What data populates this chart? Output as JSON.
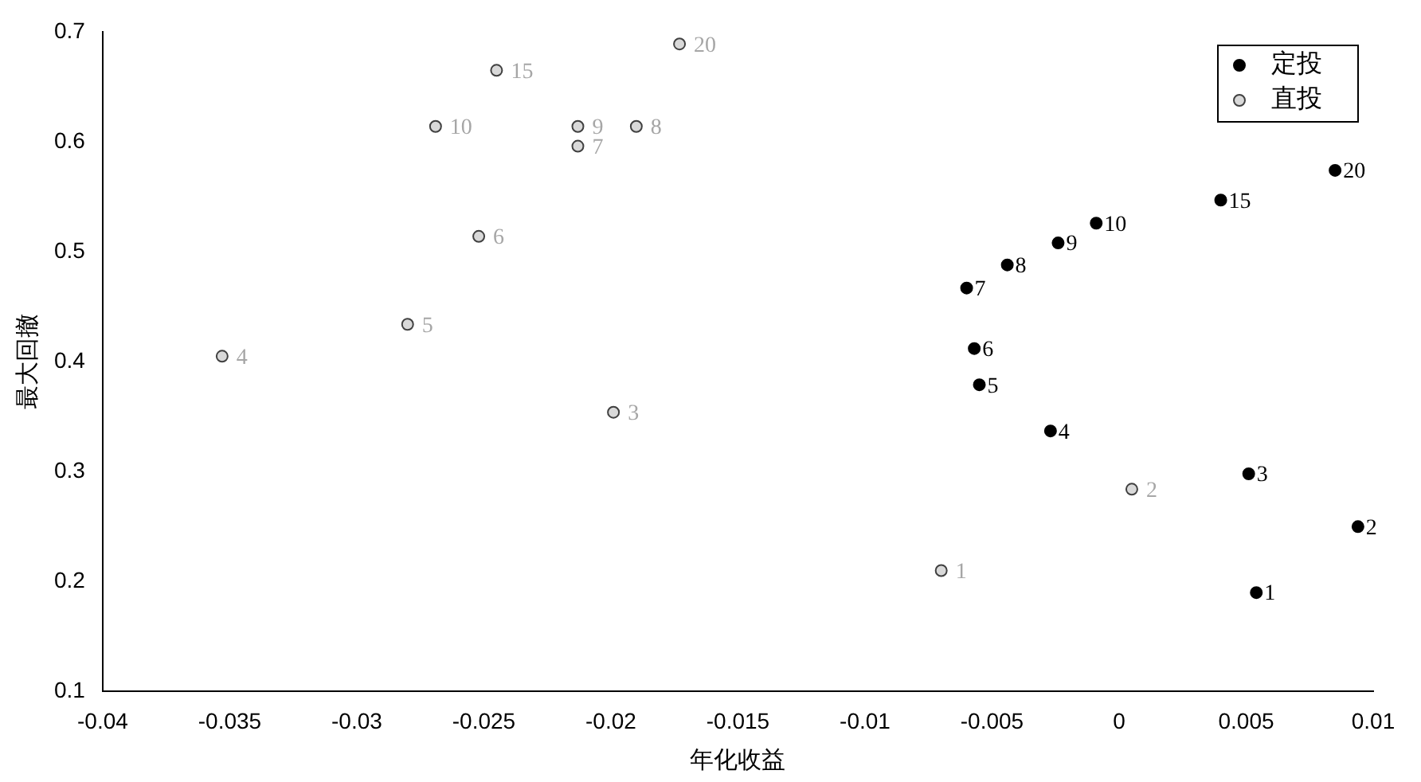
{
  "chart_data": {
    "type": "scatter",
    "xlabel": "年化收益",
    "ylabel": "最大回撤",
    "xlim": [
      -0.04,
      0.01
    ],
    "xticks": [
      -0.04,
      -0.035,
      -0.03,
      -0.025,
      -0.02,
      -0.015,
      -0.01,
      -0.005,
      0,
      0.005,
      0.01
    ],
    "ylim": [
      0.1,
      0.7
    ],
    "yticks": [
      0.1,
      0.2,
      0.3,
      0.4,
      0.5,
      0.6,
      0.7
    ],
    "grid": false,
    "legend": "top right",
    "marker": "circle",
    "series": [
      {
        "name": "定投",
        "color": "#000000",
        "x": [
          0.0054,
          0.0094,
          0.0051,
          -0.0027,
          -0.0055,
          -0.0057,
          -0.006,
          -0.0044,
          -0.0024,
          -0.0009,
          0.004,
          0.0085
        ],
        "values": [
          0.19,
          0.25,
          0.298,
          0.337,
          0.379,
          0.412,
          0.467,
          0.488,
          0.508,
          0.526,
          0.547,
          0.574
        ]
      },
      {
        "name": "直投",
        "color": "#d9d9d9",
        "x": [
          -0.007,
          0.0005,
          -0.0199,
          -0.0353,
          -0.028,
          -0.0252,
          -0.0213,
          -0.019,
          -0.0213,
          -0.0269,
          -0.0245,
          -0.0173
        ],
        "values": [
          0.21,
          0.284,
          0.354,
          0.405,
          0.434,
          0.514,
          0.596,
          0.614,
          0.614,
          0.614,
          0.665,
          0.689
        ]
      }
    ],
    "annotations": [
      {
        "text": "1",
        "x": 0.0054,
        "y": 0.19
      },
      {
        "text": "2",
        "x": 0.0094,
        "y": 0.25
      },
      {
        "text": "3",
        "x": 0.0051,
        "y": 0.298
      },
      {
        "text": "4",
        "x": -0.0027,
        "y": 0.337
      },
      {
        "text": "5",
        "x": -0.0055,
        "y": 0.379
      },
      {
        "text": "6",
        "x": -0.0057,
        "y": 0.412
      },
      {
        "text": "7",
        "x": -0.006,
        "y": 0.467
      },
      {
        "text": "8",
        "x": -0.0044,
        "y": 0.488
      },
      {
        "text": "9",
        "x": -0.0024,
        "y": 0.508
      },
      {
        "text": "10",
        "x": -0.0009,
        "y": 0.526
      },
      {
        "text": "15",
        "x": 0.004,
        "y": 0.547
      },
      {
        "text": "20",
        "x": 0.0085,
        "y": 0.574
      },
      {
        "text": "1",
        "x": -0.007,
        "y": 0.21
      },
      {
        "text": "2",
        "x": 0.0005,
        "y": 0.284
      },
      {
        "text": "3",
        "x": -0.0199,
        "y": 0.354
      },
      {
        "text": "4",
        "x": -0.0353,
        "y": 0.405
      },
      {
        "text": "5",
        "x": -0.028,
        "y": 0.434
      },
      {
        "text": "6",
        "x": -0.0252,
        "y": 0.514
      },
      {
        "text": "7",
        "x": -0.0213,
        "y": 0.596
      },
      {
        "text": "8",
        "x": -0.019,
        "y": 0.614
      },
      {
        "text": "9",
        "x": -0.0213,
        "y": 0.614
      },
      {
        "text": "10",
        "x": -0.0269,
        "y": 0.614
      },
      {
        "text": "15",
        "x": -0.0245,
        "y": 0.665
      },
      {
        "text": "20",
        "x": -0.0173,
        "y": 0.689
      }
    ]
  }
}
